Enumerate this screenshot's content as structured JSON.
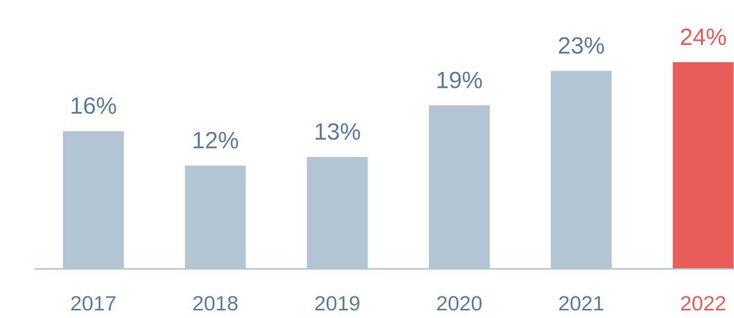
{
  "chart_data": {
    "type": "bar",
    "categories": [
      "2017",
      "2018",
      "2019",
      "2020",
      "2021",
      "2022"
    ],
    "values": [
      16,
      12,
      13,
      19,
      23,
      24
    ],
    "value_labels": [
      "16%",
      "12%",
      "13%",
      "19%",
      "23%",
      "24%"
    ],
    "colors": [
      "#b3c5d4",
      "#b3c5d4",
      "#b3c5d4",
      "#b3c5d4",
      "#b3c5d4",
      "#e85c5a"
    ],
    "label_colors": [
      "#5e7c9c",
      "#5e7c9c",
      "#5e7c9c",
      "#5e7c9c",
      "#5e7c9c",
      "#e85c5a"
    ]
  }
}
